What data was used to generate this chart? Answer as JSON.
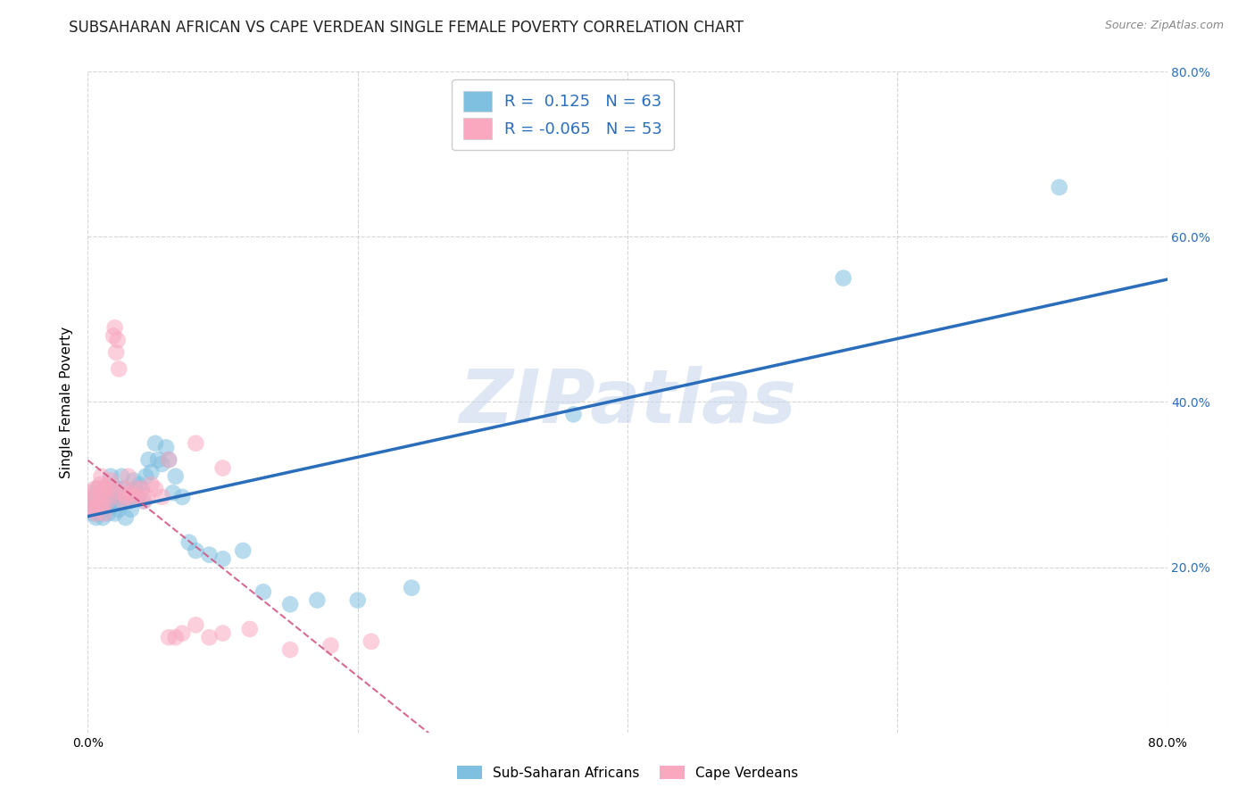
{
  "title": "SUBSAHARAN AFRICAN VS CAPE VERDEAN SINGLE FEMALE POVERTY CORRELATION CHART",
  "source": "Source: ZipAtlas.com",
  "ylabel": "Single Female Poverty",
  "right_yticks": [
    "80.0%",
    "60.0%",
    "40.0%",
    "20.0%"
  ],
  "right_ytick_vals": [
    0.8,
    0.6,
    0.4,
    0.2
  ],
  "legend_label1": "Sub-Saharan Africans",
  "legend_label2": "Cape Verdeans",
  "R1": 0.125,
  "N1": 63,
  "R2": -0.065,
  "N2": 53,
  "color_blue": "#7fbfdf",
  "color_pink": "#f9a8c0",
  "color_blue_line": "#2a6ebb",
  "color_pink_line": "#d05080",
  "watermark_text": "ZIPatlas",
  "xlim": [
    0.0,
    0.8
  ],
  "ylim": [
    0.0,
    0.8
  ],
  "blue_scatter_x": [
    0.002,
    0.003,
    0.004,
    0.005,
    0.005,
    0.006,
    0.007,
    0.007,
    0.008,
    0.009,
    0.01,
    0.01,
    0.011,
    0.012,
    0.013,
    0.014,
    0.015,
    0.015,
    0.016,
    0.017,
    0.018,
    0.019,
    0.02,
    0.021,
    0.022,
    0.023,
    0.025,
    0.026,
    0.027,
    0.028,
    0.03,
    0.031,
    0.032,
    0.034,
    0.035,
    0.037,
    0.038,
    0.04,
    0.041,
    0.043,
    0.045,
    0.047,
    0.05,
    0.052,
    0.055,
    0.058,
    0.06,
    0.063,
    0.065,
    0.07,
    0.075,
    0.08,
    0.09,
    0.1,
    0.115,
    0.13,
    0.15,
    0.17,
    0.2,
    0.24,
    0.36,
    0.56,
    0.72
  ],
  "blue_scatter_y": [
    0.27,
    0.28,
    0.265,
    0.275,
    0.285,
    0.26,
    0.27,
    0.295,
    0.28,
    0.265,
    0.275,
    0.29,
    0.26,
    0.285,
    0.295,
    0.27,
    0.265,
    0.3,
    0.28,
    0.31,
    0.275,
    0.29,
    0.265,
    0.295,
    0.28,
    0.27,
    0.31,
    0.285,
    0.295,
    0.26,
    0.29,
    0.28,
    0.27,
    0.305,
    0.295,
    0.285,
    0.3,
    0.295,
    0.28,
    0.31,
    0.33,
    0.315,
    0.35,
    0.33,
    0.325,
    0.345,
    0.33,
    0.29,
    0.31,
    0.285,
    0.23,
    0.22,
    0.215,
    0.21,
    0.22,
    0.17,
    0.155,
    0.16,
    0.16,
    0.175,
    0.385,
    0.55,
    0.66
  ],
  "pink_scatter_x": [
    0.001,
    0.002,
    0.003,
    0.004,
    0.005,
    0.005,
    0.006,
    0.007,
    0.008,
    0.009,
    0.01,
    0.01,
    0.011,
    0.012,
    0.013,
    0.014,
    0.015,
    0.016,
    0.017,
    0.018,
    0.019,
    0.02,
    0.021,
    0.022,
    0.023,
    0.025,
    0.026,
    0.027,
    0.028,
    0.03,
    0.032,
    0.034,
    0.036,
    0.038,
    0.04,
    0.042,
    0.044,
    0.047,
    0.05,
    0.055,
    0.06,
    0.065,
    0.07,
    0.08,
    0.09,
    0.1,
    0.12,
    0.15,
    0.18,
    0.21,
    0.06,
    0.08,
    0.1
  ],
  "pink_scatter_y": [
    0.28,
    0.29,
    0.27,
    0.285,
    0.295,
    0.27,
    0.265,
    0.275,
    0.295,
    0.3,
    0.285,
    0.31,
    0.275,
    0.265,
    0.295,
    0.285,
    0.28,
    0.3,
    0.305,
    0.295,
    0.48,
    0.49,
    0.46,
    0.475,
    0.44,
    0.29,
    0.28,
    0.295,
    0.285,
    0.31,
    0.29,
    0.285,
    0.295,
    0.285,
    0.295,
    0.28,
    0.285,
    0.3,
    0.295,
    0.285,
    0.115,
    0.115,
    0.12,
    0.13,
    0.115,
    0.12,
    0.125,
    0.1,
    0.105,
    0.11,
    0.33,
    0.35,
    0.32
  ],
  "background_color": "#ffffff",
  "grid_color": "#cccccc",
  "title_fontsize": 12,
  "axis_label_fontsize": 11,
  "tick_fontsize": 10,
  "watermark_fontsize": 60,
  "watermark_color": "#c8d8ec",
  "watermark_alpha": 0.6
}
